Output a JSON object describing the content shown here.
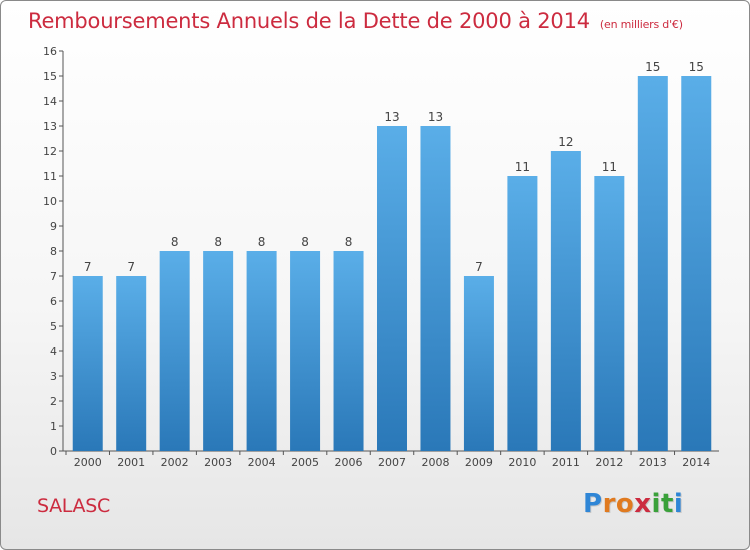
{
  "header": {
    "title": "Remboursements Annuels de la Dette de 2000 à 2014",
    "subtitle": "(en milliers d'€)"
  },
  "footer": {
    "commune": "SALASC",
    "logo_letters": [
      "P",
      "r",
      "o",
      "x",
      "i",
      "t",
      "i"
    ],
    "logo_colors": [
      "#2f86d6",
      "#e07a1f",
      "#e07a1f",
      "#cc2b3f",
      "#3aa13a",
      "#3aa13a",
      "#2f86d6"
    ]
  },
  "colors": {
    "bar_top": "#5aaee8",
    "bar_bottom": "#2a78b8",
    "axis": "#555555",
    "text": "#444444"
  },
  "chart_data": {
    "type": "bar",
    "title": "Remboursements Annuels de la Dette de 2000 à 2014",
    "xlabel": "",
    "ylabel": "",
    "categories": [
      "2000",
      "2001",
      "2002",
      "2003",
      "2004",
      "2005",
      "2006",
      "2007",
      "2008",
      "2009",
      "2010",
      "2011",
      "2012",
      "2013",
      "2014"
    ],
    "values": [
      7,
      7,
      8,
      8,
      8,
      8,
      8,
      13,
      13,
      7,
      11,
      12,
      11,
      15,
      15
    ],
    "ylim": [
      0,
      16
    ],
    "yticks": [
      0,
      1,
      2,
      3,
      4,
      5,
      6,
      7,
      8,
      9,
      10,
      11,
      12,
      13,
      14,
      15,
      16
    ],
    "grid": false
  }
}
